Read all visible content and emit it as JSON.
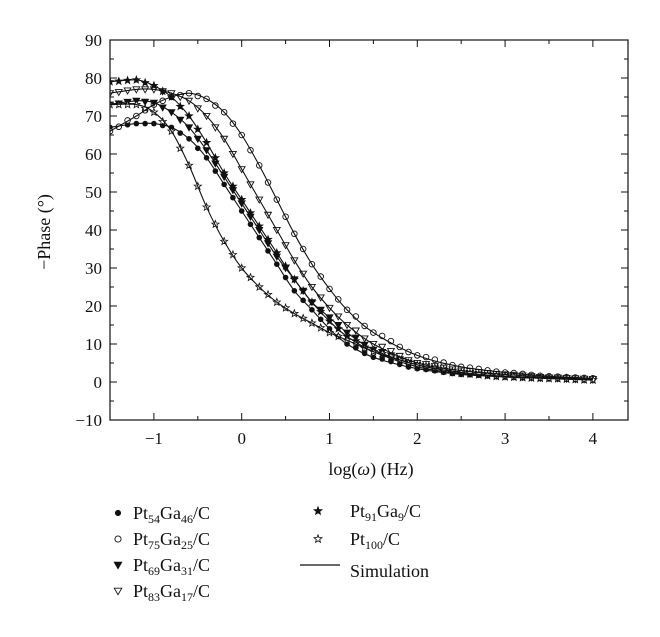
{
  "chart_data": {
    "type": "scatter",
    "title": "",
    "xlabel": {
      "main": "log(",
      "var": "ω",
      "end": ") (Hz)"
    },
    "ylabel": "−Phase (°)",
    "xlim": [
      -1.5,
      4.4
    ],
    "ylim": [
      -10,
      90
    ],
    "xticks": [
      -1,
      0,
      1,
      2,
      3,
      4
    ],
    "xtick_labels": [
      "−1",
      "0",
      "1",
      "2",
      "3",
      "4"
    ],
    "yticks": [
      -10,
      0,
      10,
      20,
      30,
      40,
      50,
      60,
      70,
      80,
      90
    ],
    "ytick_labels": [
      "−10",
      "0",
      "10",
      "20",
      "30",
      "40",
      "50",
      "60",
      "70",
      "80",
      "90"
    ],
    "grid": false,
    "legend_position": "below",
    "simulation_label": "Simulation",
    "series": [
      {
        "name": "Pt54Ga46/C",
        "label_parts": [
          [
            "Pt",
            ""
          ],
          [
            "54",
            "sub"
          ],
          [
            "Ga",
            ""
          ],
          [
            "46",
            "sub"
          ],
          [
            "/C",
            ""
          ]
        ],
        "marker": "filled-circle",
        "x": [
          -1.5,
          -1.2,
          -1.0,
          -0.8,
          -0.6,
          -0.4,
          -0.2,
          0.0,
          0.2,
          0.4,
          0.6,
          0.8,
          1.0,
          1.2,
          1.5,
          2.0,
          2.5,
          3.0,
          3.5,
          4.0
        ],
        "y": [
          67,
          68,
          68,
          67,
          64,
          59,
          52,
          45,
          38,
          31,
          24,
          19,
          14,
          10,
          6.5,
          3.5,
          2,
          1.4,
          1,
          0.6
        ]
      },
      {
        "name": "Pt75Ga25/C",
        "label_parts": [
          [
            "Pt",
            ""
          ],
          [
            "75",
            "sub"
          ],
          [
            "Ga",
            ""
          ],
          [
            "25",
            "sub"
          ],
          [
            "/C",
            ""
          ]
        ],
        "marker": "open-circle",
        "x": [
          -1.5,
          -1.2,
          -1.0,
          -0.8,
          -0.6,
          -0.4,
          -0.2,
          0.0,
          0.2,
          0.4,
          0.6,
          0.8,
          1.0,
          1.2,
          1.5,
          2.0,
          2.5,
          3.0,
          3.5,
          4.0
        ],
        "y": [
          66,
          70,
          73,
          75,
          76,
          74.5,
          71,
          65,
          57,
          48,
          39,
          31,
          24.5,
          19,
          13,
          7,
          4,
          2.5,
          1.5,
          1
        ]
      },
      {
        "name": "Pt69Ga31/C",
        "label_parts": [
          [
            "Pt",
            ""
          ],
          [
            "69",
            "sub"
          ],
          [
            "Ga",
            ""
          ],
          [
            "31",
            "sub"
          ],
          [
            "/C",
            ""
          ]
        ],
        "marker": "filled-triangle-down",
        "x": [
          -1.5,
          -1.2,
          -1.0,
          -0.8,
          -0.6,
          -0.4,
          -0.2,
          0.0,
          0.2,
          0.4,
          0.6,
          0.8,
          1.0,
          1.2,
          1.5,
          2.0,
          2.5,
          3.0,
          3.5,
          4.0
        ],
        "y": [
          73,
          74,
          73.5,
          71,
          67,
          61,
          54,
          47,
          40,
          33,
          27,
          21,
          17,
          13,
          8.5,
          4.5,
          2.5,
          1.5,
          1,
          0.6
        ]
      },
      {
        "name": "Pt83Ga17/C",
        "label_parts": [
          [
            "Pt",
            ""
          ],
          [
            "83",
            "sub"
          ],
          [
            "Ga",
            ""
          ],
          [
            "17",
            "sub"
          ],
          [
            "/C",
            ""
          ]
        ],
        "marker": "open-triangle-down",
        "x": [
          -1.5,
          -1.2,
          -1.0,
          -0.8,
          -0.6,
          -0.4,
          -0.2,
          0.0,
          0.2,
          0.4,
          0.6,
          0.8,
          1.0,
          1.2,
          1.5,
          2.0,
          2.5,
          3.0,
          3.5,
          4.0
        ],
        "y": [
          76,
          77,
          77,
          76,
          74,
          70,
          64,
          56,
          48,
          40,
          32,
          25,
          19.5,
          15,
          10,
          5,
          3,
          2,
          1.2,
          0.8
        ]
      },
      {
        "name": "Pt91Ga9/C",
        "label_parts": [
          [
            "Pt",
            ""
          ],
          [
            "91",
            "sub"
          ],
          [
            "Ga",
            ""
          ],
          [
            "9",
            "sub"
          ],
          [
            "/C",
            ""
          ]
        ],
        "marker": "filled-star",
        "x": [
          -1.5,
          -1.2,
          -1.0,
          -0.8,
          -0.6,
          -0.4,
          -0.2,
          0.0,
          0.2,
          0.4,
          0.6,
          0.8,
          1.0,
          1.2,
          1.5,
          2.0,
          2.5,
          3.0,
          3.5,
          4.0
        ],
        "y": [
          79,
          79.5,
          78,
          75,
          70,
          63,
          55,
          48,
          41,
          34,
          27,
          21,
          16,
          12,
          8,
          4,
          2.2,
          1.3,
          0.9,
          0.5
        ]
      },
      {
        "name": "Pt100/C",
        "label_parts": [
          [
            "Pt",
            ""
          ],
          [
            "100",
            "sub"
          ],
          [
            "/C",
            ""
          ]
        ],
        "marker": "open-star",
        "x": [
          -1.5,
          -1.2,
          -1.0,
          -0.8,
          -0.6,
          -0.4,
          -0.2,
          0.0,
          0.2,
          0.4,
          0.6,
          0.8,
          1.0,
          1.2,
          1.5,
          2.0,
          2.5,
          3.0,
          3.5,
          4.0
        ],
        "y": [
          73,
          73,
          71,
          66,
          57,
          46,
          37,
          30,
          25,
          21,
          18,
          15.5,
          13,
          11,
          8,
          4.5,
          2.5,
          1.5,
          1,
          0.6
        ]
      }
    ]
  }
}
